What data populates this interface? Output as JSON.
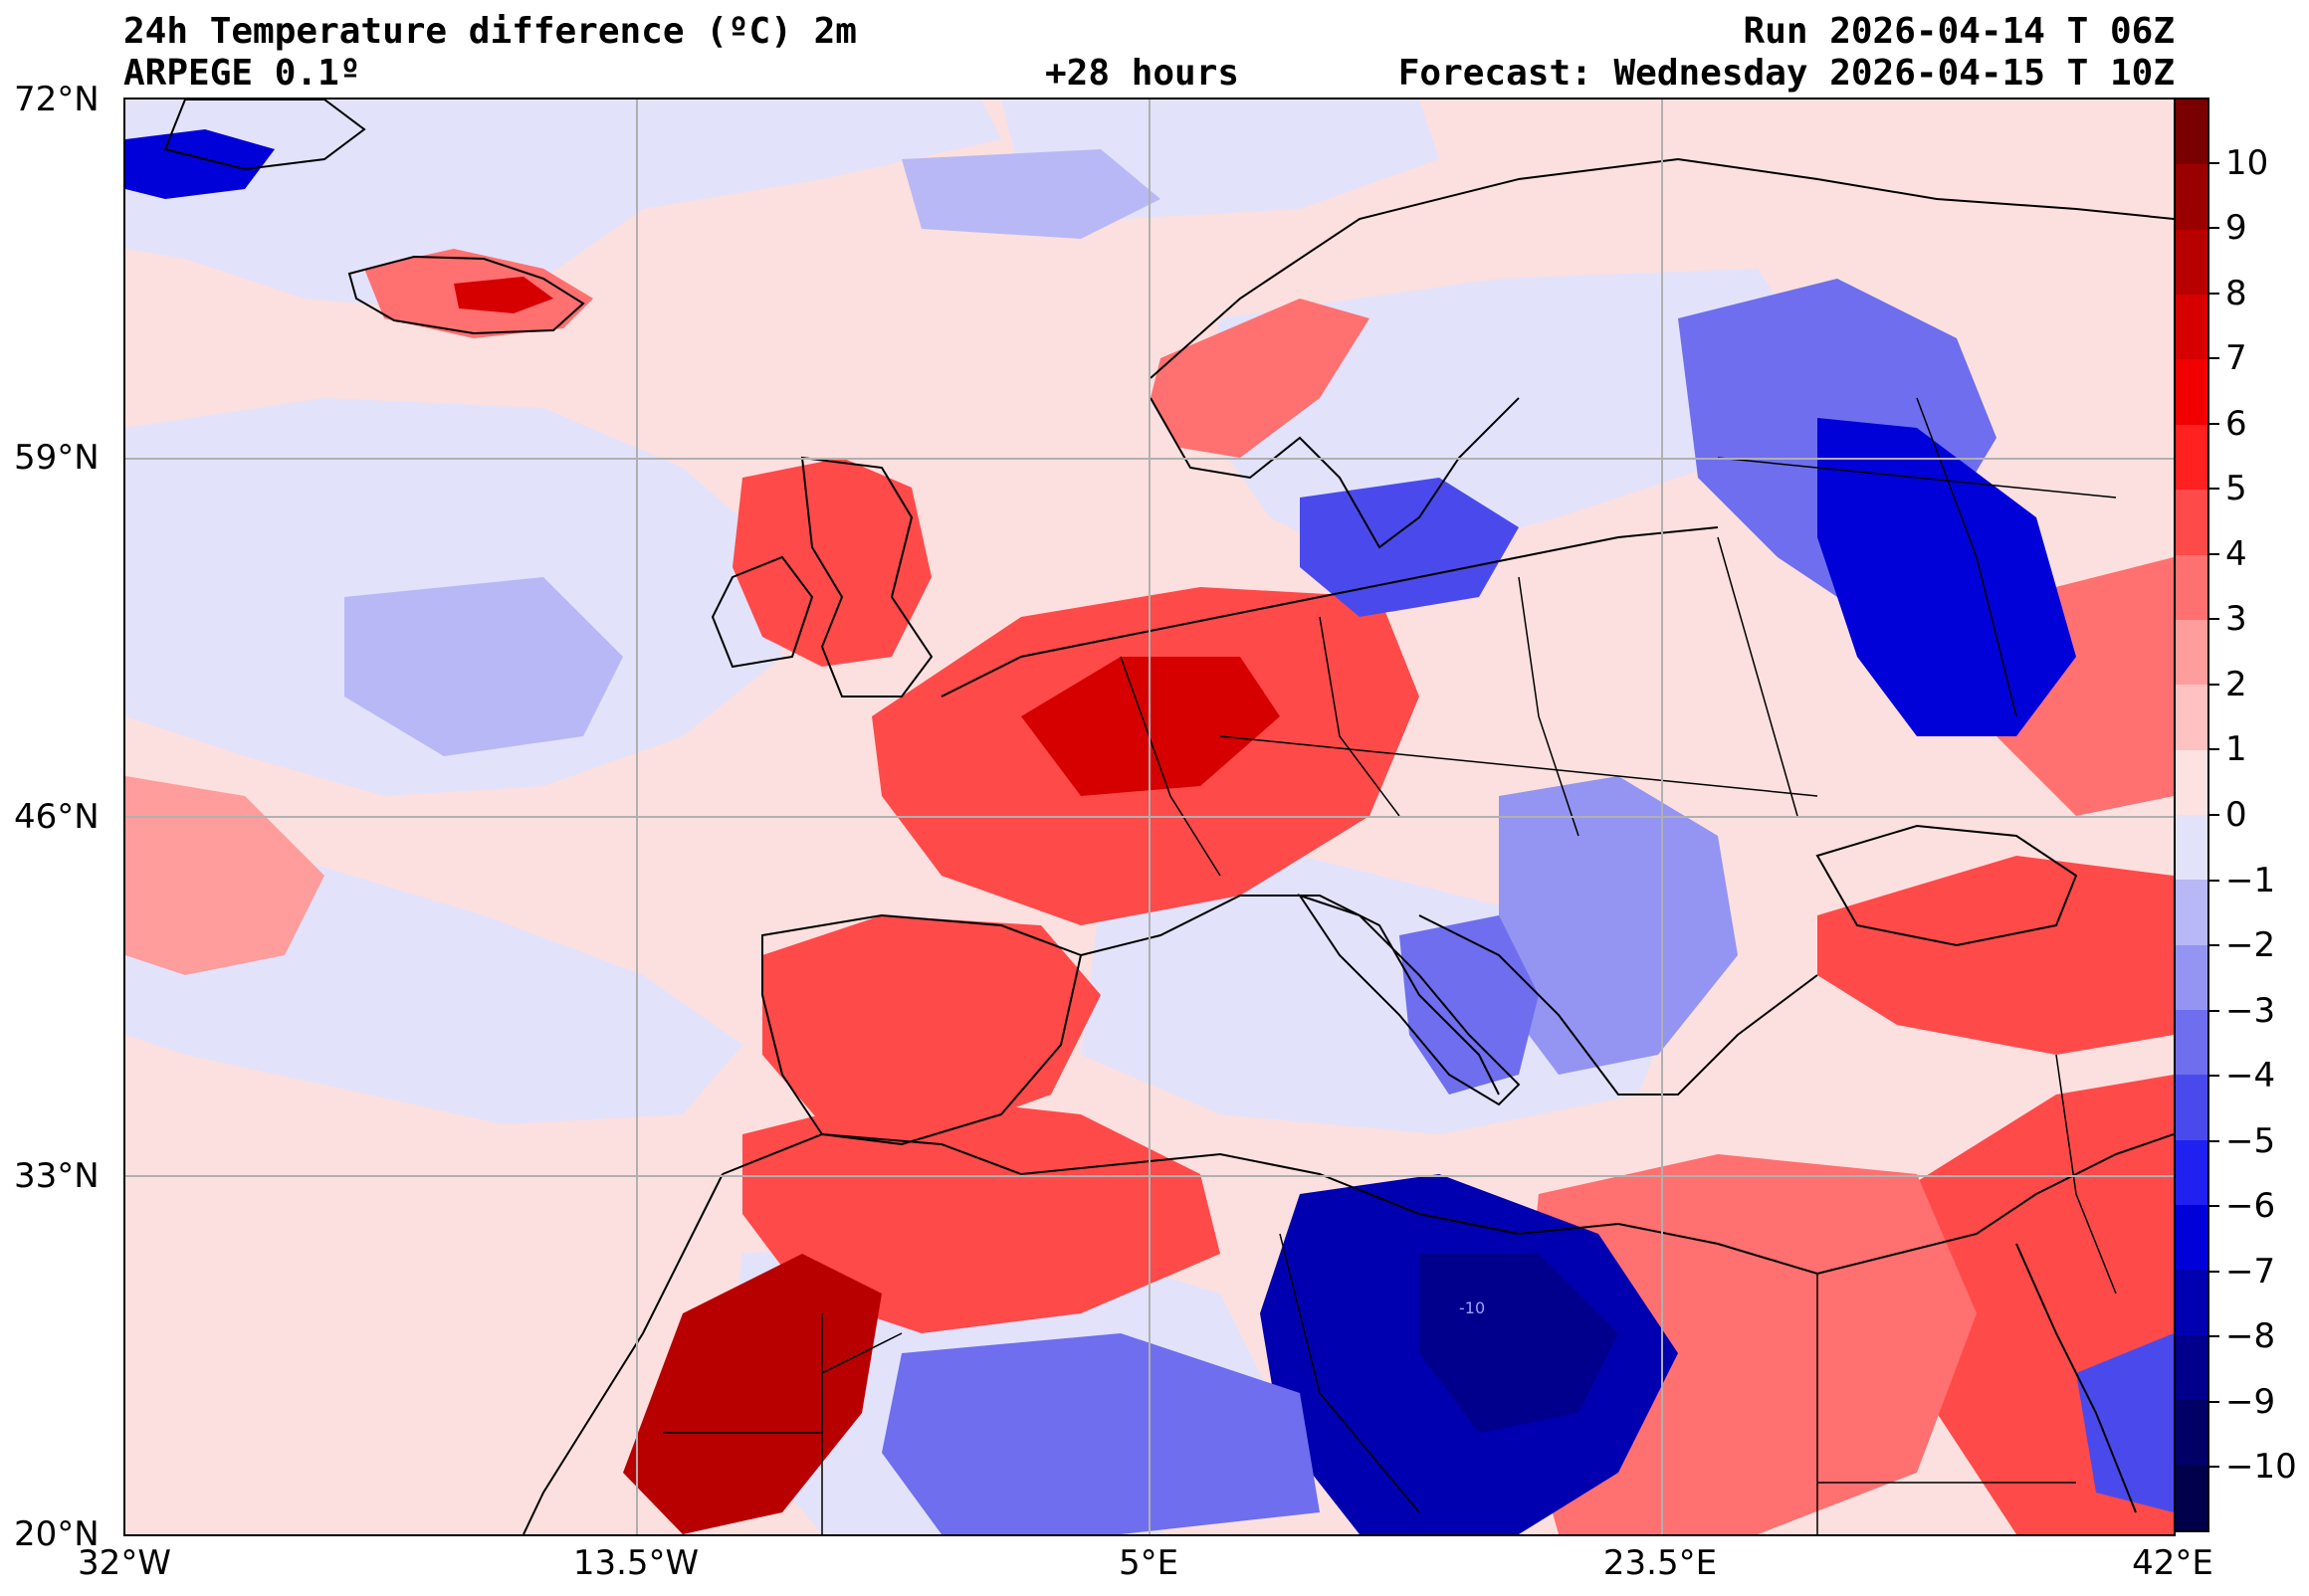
{
  "header": {
    "title_line1": "24h Temperature difference (ºC) 2m",
    "title_line2": "ARPEGE 0.1º",
    "lead_time": "+28 hours",
    "run": "Run 2026-04-14 T 06Z",
    "forecast": "Forecast: Wednesday 2026-04-15 T 10Z"
  },
  "map": {
    "lat_labels": [
      "72°N",
      "59°N",
      "46°N",
      "33°N",
      "20°N"
    ],
    "lon_labels": [
      "32°W",
      "13.5°W",
      "5°E",
      "23.5°E",
      "42°E"
    ],
    "lat_range": [
      20,
      72
    ],
    "lon_range": [
      -32,
      42
    ],
    "grid": true,
    "contour_annotation": "-10"
  },
  "colorbar": {
    "tick_labels": [
      "10",
      "9",
      "8",
      "7",
      "6",
      "5",
      "4",
      "3",
      "2",
      "1",
      "0",
      "−1",
      "−2",
      "−3",
      "−4",
      "−5",
      "−6",
      "−7",
      "−8",
      "−9",
      "−10"
    ],
    "levels": [
      10,
      9,
      8,
      7,
      6,
      5,
      4,
      3,
      2,
      1,
      0,
      -1,
      -2,
      -3,
      -4,
      -5,
      -6,
      -7,
      -8,
      -9,
      -10
    ],
    "colors": [
      "#7a0000",
      "#9a0000",
      "#b80000",
      "#d60000",
      "#f00000",
      "#ff2020",
      "#ff4a4a",
      "#ff7070",
      "#ff9c9c",
      "#ffc2c2",
      "#fde2e2",
      "#e2e2fb",
      "#b8b8f6",
      "#9494f2",
      "#6e6eee",
      "#4a4aec",
      "#2020f0",
      "#0000d8",
      "#0000b0",
      "#00008c",
      "#000066",
      "#00004a"
    ]
  }
}
